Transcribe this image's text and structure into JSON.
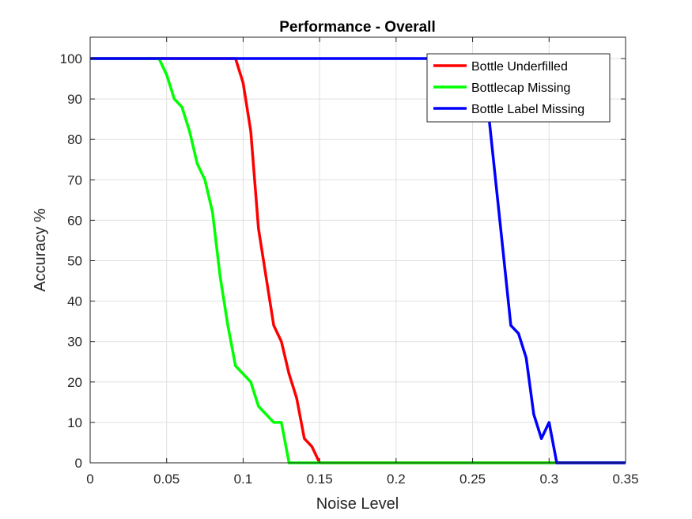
{
  "chart_data": {
    "type": "line",
    "title": "Performance - Overall",
    "xlabel": "Noise Level",
    "ylabel": "Accuracy %",
    "xlim": [
      0,
      0.35
    ],
    "ylim": [
      0,
      105
    ],
    "xticks": [
      0,
      0.05,
      0.1,
      0.15,
      0.2,
      0.25,
      0.3,
      0.35
    ],
    "xtick_labels": [
      "0",
      "0.05",
      "0.1",
      "0.15",
      "0.2",
      "0.25",
      "0.3",
      "0.35"
    ],
    "yticks": [
      0,
      10,
      20,
      30,
      40,
      50,
      60,
      70,
      80,
      90,
      100
    ],
    "ytick_labels": [
      "0",
      "10",
      "20",
      "30",
      "40",
      "50",
      "60",
      "70",
      "80",
      "90",
      "100"
    ],
    "grid": true,
    "legend_position": "top-right",
    "series": [
      {
        "name": "Bottle Underfilled",
        "color": "#ff0000",
        "x": [
          0,
          0.095,
          0.1,
          0.105,
          0.11,
          0.115,
          0.12,
          0.125,
          0.13,
          0.135,
          0.14,
          0.145,
          0.15,
          0.35
        ],
        "y": [
          100,
          100,
          94,
          82,
          58,
          46,
          34,
          30,
          22,
          16,
          6,
          4,
          0,
          0
        ]
      },
      {
        "name": "Bottlecap Missing",
        "color": "#00ff00",
        "x": [
          0,
          0.045,
          0.05,
          0.055,
          0.06,
          0.065,
          0.07,
          0.075,
          0.08,
          0.085,
          0.09,
          0.095,
          0.1,
          0.105,
          0.11,
          0.115,
          0.12,
          0.125,
          0.13,
          0.35
        ],
        "y": [
          100,
          100,
          96,
          90,
          88,
          82,
          74,
          70,
          62,
          46,
          34,
          24,
          22,
          20,
          14,
          12,
          10,
          10,
          0,
          0
        ]
      },
      {
        "name": "Bottle Label Missing",
        "color": "#0000ff",
        "x": [
          0,
          0.25,
          0.255,
          0.26,
          0.265,
          0.27,
          0.275,
          0.28,
          0.285,
          0.29,
          0.295,
          0.3,
          0.305,
          0.35
        ],
        "y": [
          100,
          100,
          96,
          88,
          70,
          52,
          34,
          32,
          26,
          12,
          6,
          10,
          0,
          0
        ]
      }
    ]
  }
}
